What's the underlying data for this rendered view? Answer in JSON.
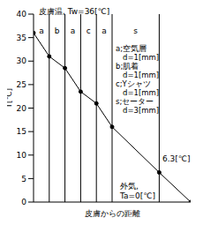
{
  "chart_data": {
    "type": "line",
    "x_label": "皮膚からの距離",
    "y_label": "T[℃]",
    "x": [
      0,
      1,
      2,
      3,
      4,
      5,
      8,
      10
    ],
    "values": [
      36,
      31,
      28.5,
      23.5,
      21,
      16,
      6.3,
      0
    ],
    "xlim": [
      0,
      10
    ],
    "ylim": [
      0,
      40
    ],
    "yticks": [
      0,
      5,
      10,
      15,
      20,
      25,
      30,
      35,
      40
    ],
    "tick_labels": "y",
    "color": "#000000",
    "marker": "circle",
    "layers": [
      {
        "label": "a",
        "start": 0,
        "end": 1
      },
      {
        "label": "b",
        "start": 1,
        "end": 2
      },
      {
        "label": "a",
        "start": 2,
        "end": 3
      },
      {
        "label": "c",
        "start": 3,
        "end": 4
      },
      {
        "label": "a",
        "start": 4,
        "end": 5
      },
      {
        "label": "s",
        "start": 5,
        "end": 8
      }
    ],
    "annotations": [
      "皮膚温, Tw=36[℃]",
      "6.3[℃]",
      "外気,",
      "Ta=0[℃]"
    ],
    "layer_key": [
      "a;空気層",
      "d=1[mm]",
      "b;肌着",
      "d=1[mm]",
      "c;Yシャツ",
      "d=1[mm]",
      "s;セーター",
      "d=3[mm]"
    ]
  }
}
